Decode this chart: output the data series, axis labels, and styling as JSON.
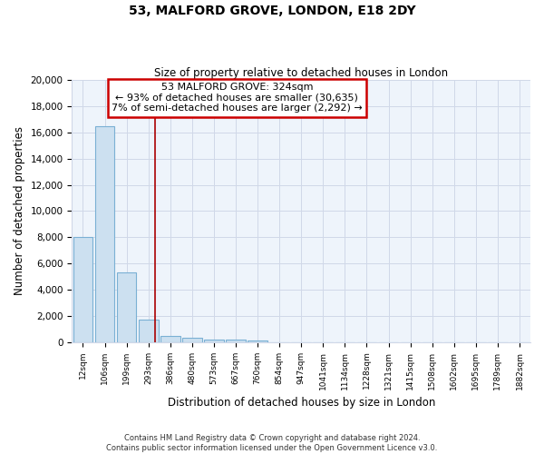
{
  "title": "53, MALFORD GROVE, LONDON, E18 2DY",
  "subtitle": "Size of property relative to detached houses in London",
  "xlabel": "Distribution of detached houses by size in London",
  "ylabel": "Number of detached properties",
  "bar_labels": [
    "12sqm",
    "106sqm",
    "199sqm",
    "293sqm",
    "386sqm",
    "480sqm",
    "573sqm",
    "667sqm",
    "760sqm",
    "854sqm",
    "947sqm",
    "1041sqm",
    "1134sqm",
    "1228sqm",
    "1321sqm",
    "1415sqm",
    "1508sqm",
    "1602sqm",
    "1695sqm",
    "1789sqm",
    "1882sqm"
  ],
  "bar_values": [
    8000,
    16500,
    5300,
    1700,
    450,
    300,
    170,
    170,
    100,
    0,
    0,
    0,
    0,
    0,
    0,
    0,
    0,
    0,
    0,
    0,
    0
  ],
  "bar_color": "#cce0f0",
  "bar_edge_color": "#7ab0d4",
  "annotation_box_title": "53 MALFORD GROVE: 324sqm",
  "annotation_line1": "← 93% of detached houses are smaller (30,635)",
  "annotation_line2": "7% of semi-detached houses are larger (2,292) →",
  "vline_x": 3.3,
  "ylim": [
    0,
    20000
  ],
  "yticks": [
    0,
    2000,
    4000,
    6000,
    8000,
    10000,
    12000,
    14000,
    16000,
    18000,
    20000
  ],
  "footer_line1": "Contains HM Land Registry data © Crown copyright and database right 2024.",
  "footer_line2": "Contains public sector information licensed under the Open Government Licence v3.0.",
  "annotation_box_color": "#ffffff",
  "annotation_box_edge_color": "#cc0000",
  "vline_color": "#aa0000",
  "grid_color": "#d0d8e8",
  "background_color": "#ffffff",
  "ax_background": "#eef4fb"
}
